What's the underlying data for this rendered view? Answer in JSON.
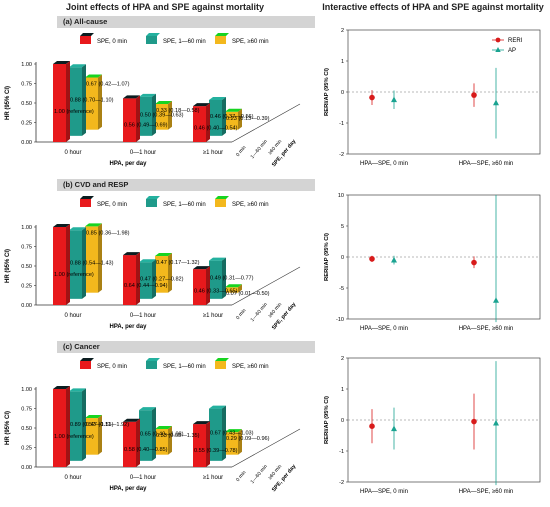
{
  "titles": {
    "left": "Joint effects of HPA and SPE against mortality",
    "right": "Interactive effects of HPA and SPE against mortality"
  },
  "colors": {
    "spe0": "#e8191c",
    "spe1_60": "#1f9a8a",
    "spe60": "#f3b81d",
    "rerPoint": "#d81b1b",
    "apPoint": "#1aa391"
  },
  "chart_data": [
    {
      "type": "bar",
      "panel": "(a) All-cause",
      "ylabel": "HR (95% CI)",
      "xlabel": "HPA, per day",
      "zlabel": "SPE, per day",
      "categories": [
        "0 hour",
        "0—1 hour",
        "≥1 hour"
      ],
      "depth_labels": [
        "0 min",
        "1—60 min",
        "≥60 min"
      ],
      "yticks": [
        "0.00",
        "0.25",
        "0.50",
        "0.75",
        "1.00"
      ],
      "ylim": [
        0,
        1
      ],
      "series": [
        {
          "name": "SPE, 0 min",
          "values": [
            1.0,
            0.56,
            0.46
          ],
          "labels": [
            "1.00 (reference)",
            "0.56 (0.49—0.69)",
            "0.46 (0.40—0.54)"
          ]
        },
        {
          "name": "SPE, 1—60 min",
          "values": [
            0.88,
            0.5,
            0.46
          ],
          "labels": [
            "0.88 (0.70—1.10)",
            "0.50 (0.39—0.63)",
            "0.46 (0.37—0.56)"
          ]
        },
        {
          "name": "SPE, ≥60 min",
          "values": [
            0.67,
            0.33,
            0.23
          ],
          "labels": [
            "0.67 (0.42—1.07)",
            "0.33 (0.18—0.58)",
            "0.23 (0.13—0.39)"
          ]
        }
      ]
    },
    {
      "type": "bar",
      "panel": "(b) CVD and RESP",
      "ylabel": "HR (95% CI)",
      "xlabel": "HPA, per day",
      "zlabel": "SPE, per day",
      "categories": [
        "0 hour",
        "0—1 hour",
        "≥1 hour"
      ],
      "depth_labels": [
        "0 min",
        "1—60 min",
        "≥60 min"
      ],
      "yticks": [
        "0.00",
        "0.25",
        "0.50",
        "0.75",
        "1.00"
      ],
      "ylim": [
        0,
        1
      ],
      "series": [
        {
          "name": "SPE, 0 min",
          "values": [
            1.0,
            0.64,
            0.46
          ],
          "labels": [
            "1.00 (reference)",
            "0.64 (0.44—0.94)",
            "0.46 (0.33—0.65)"
          ]
        },
        {
          "name": "SPE, 1—60 min",
          "values": [
            0.88,
            0.47,
            0.49
          ],
          "labels": [
            "0.88 (0.54—1.43)",
            "0.47 (0.27—0.82)",
            "0.49 (0.31—0.77)"
          ]
        },
        {
          "name": "SPE, ≥60 min",
          "values": [
            0.85,
            0.47,
            0.07
          ],
          "labels": [
            "0.85 (0.36—1.98)",
            "0.47 (0.17—1.32)",
            "0.07 (0.01—0.50)"
          ]
        }
      ]
    },
    {
      "type": "bar",
      "panel": "(c) Cancer",
      "ylabel": "HR (95% CI)",
      "xlabel": "HPA, per day",
      "zlabel": "SPE, per day",
      "categories": [
        "0 hour",
        "0—1 hour",
        "≥1 hour"
      ],
      "depth_labels": [
        "0 min",
        "1—60 min",
        "≥60 min"
      ],
      "yticks": [
        "0.00",
        "0.25",
        "0.50",
        "0.75",
        "1.00"
      ],
      "ylim": [
        0,
        1
      ],
      "series": [
        {
          "name": "SPE, 0 min",
          "values": [
            1.0,
            0.58,
            0.55
          ],
          "labels": [
            "1.00 (reference)",
            "0.58 (0.40—0.85)",
            "0.55 (0.39—0.78)"
          ]
        },
        {
          "name": "SPE, 1—60 min",
          "values": [
            0.89,
            0.65,
            0.67
          ],
          "labels": [
            "0.89 (0.52—1.51)",
            "0.65 (0.40—1.08)",
            "0.67 (0.43—1.03)"
          ]
        },
        {
          "name": "SPE, ≥60 min",
          "values": [
            0.47,
            0.33,
            0.29
          ],
          "labels": [
            "0.47 (0.11—1.92)",
            "0.33 (0.08—1.35)",
            "0.29 (0.09—0.96)"
          ]
        }
      ]
    },
    {
      "type": "scatter",
      "panel": "(a) All-cause",
      "ylabel": "RERI/AP (95% CI)",
      "categories": [
        "HPA—SPE, 0 min",
        "HPA—SPE, ≥60 min"
      ],
      "ylim": [
        -2,
        2
      ],
      "yticks": [
        -2,
        -1,
        0,
        1,
        2
      ],
      "legend": "top-right",
      "series": [
        {
          "name": "RERI",
          "values": [
            -0.18,
            -0.1
          ],
          "ci": [
            [
              -0.42,
              0.06
            ],
            [
              -0.48,
              0.28
            ]
          ]
        },
        {
          "name": "AP",
          "values": [
            -0.25,
            -0.35
          ],
          "ci": [
            [
              -0.55,
              0.05
            ],
            [
              -1.5,
              0.78
            ]
          ]
        }
      ]
    },
    {
      "type": "scatter",
      "panel": "(b) CVD and RESP",
      "ylabel": "RERI/AP (95% CI)",
      "categories": [
        "HPA—SPE, 0 min",
        "HPA—SPE, ≥60 min"
      ],
      "ylim": [
        -10,
        10
      ],
      "yticks": [
        -10,
        -5,
        0,
        5,
        10
      ],
      "series": [
        {
          "name": "RERI",
          "values": [
            -0.3,
            -0.9
          ],
          "ci": [
            [
              -0.8,
              0.2
            ],
            [
              -1.8,
              0.1
            ]
          ]
        },
        {
          "name": "AP",
          "values": [
            -0.5,
            -7.0
          ],
          "ci": [
            [
              -1.2,
              0.2
            ],
            [
              -10.5,
              10.0
            ]
          ]
        }
      ]
    },
    {
      "type": "scatter",
      "panel": "(c) Cancer",
      "ylabel": "RERI/AP (95% CI)",
      "categories": [
        "HPA—SPE, 0 min",
        "HPA—SPE, ≥60 min"
      ],
      "ylim": [
        -2,
        2
      ],
      "yticks": [
        -2,
        -1,
        0,
        1,
        2
      ],
      "series": [
        {
          "name": "RERI",
          "values": [
            -0.2,
            -0.05
          ],
          "ci": [
            [
              -0.75,
              0.35
            ],
            [
              -0.95,
              0.85
            ]
          ]
        },
        {
          "name": "AP",
          "values": [
            -0.28,
            -0.1
          ],
          "ci": [
            [
              -0.95,
              0.4
            ],
            [
              -2.1,
              1.9
            ]
          ]
        }
      ]
    }
  ]
}
